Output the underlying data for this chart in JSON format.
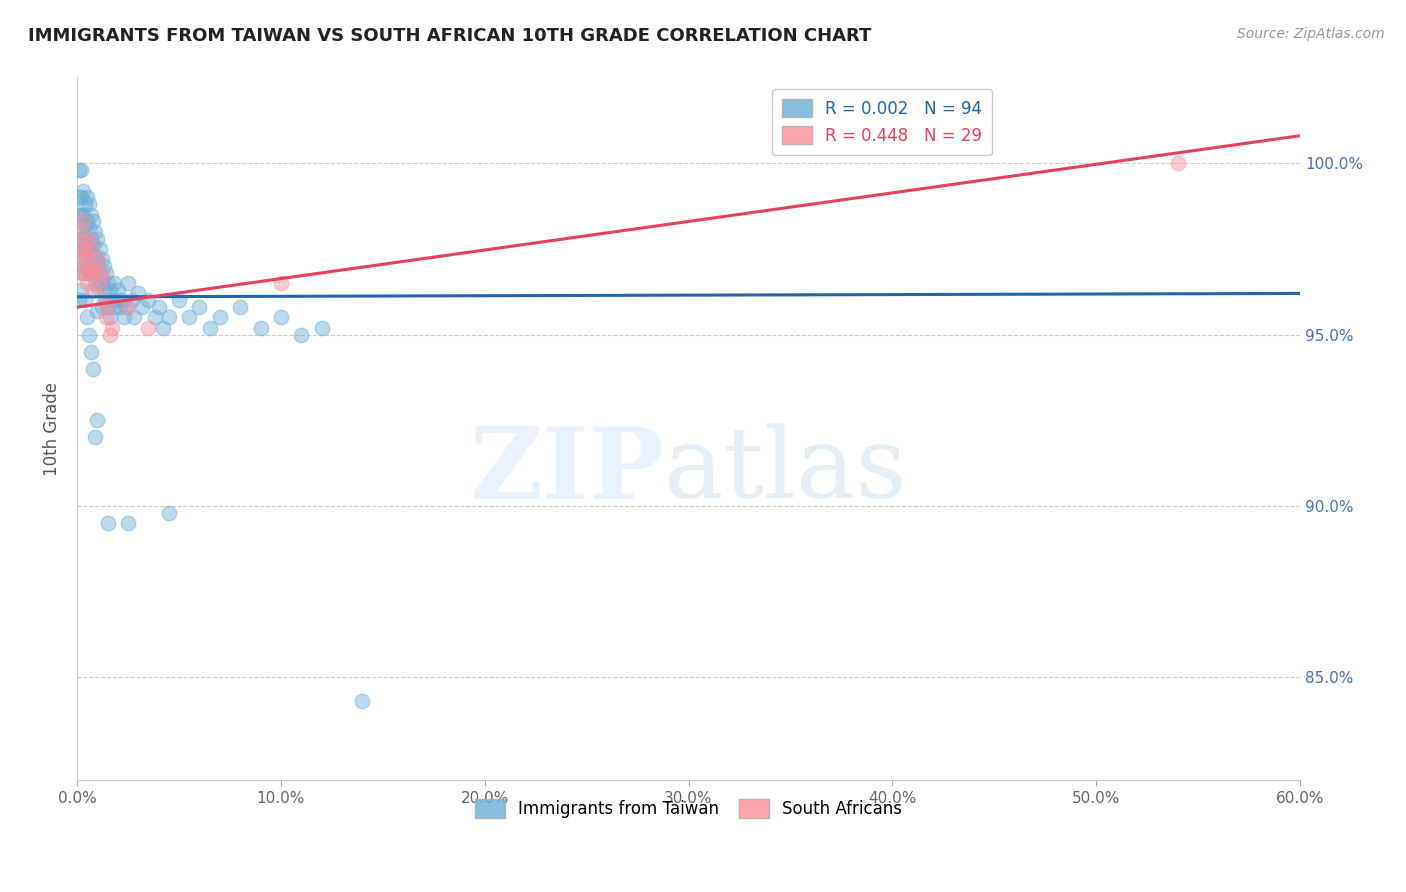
{
  "title": "IMMIGRANTS FROM TAIWAN VS SOUTH AFRICAN 10TH GRADE CORRELATION CHART",
  "source": "Source: ZipAtlas.com",
  "ylabel": "10th Grade",
  "ytick_labels": [
    "85.0%",
    "90.0%",
    "95.0%",
    "100.0%"
  ],
  "ytick_values": [
    0.85,
    0.9,
    0.95,
    1.0
  ],
  "legend_entry1": "R = 0.002   N = 94",
  "legend_entry2": "R = 0.448   N = 29",
  "legend_color1": "#6baed6",
  "legend_color2": "#fc8d9a",
  "trendline1_color": "#2166ac",
  "trendline2_color": "#e8405a",
  "background_color": "#ffffff",
  "taiwan_dot_color": "#6baed6",
  "sa_dot_color": "#fc8d9a",
  "xlim": [
    0.0,
    0.6
  ],
  "ylim": [
    0.82,
    1.025
  ],
  "dot_size": 110,
  "dot_alpha": 0.45,
  "taiwan_trendline_x": [
    0.0,
    0.6
  ],
  "taiwan_trendline_y": [
    0.961,
    0.962
  ],
  "sa_trendline_x": [
    0.0,
    0.6
  ],
  "sa_trendline_y": [
    0.958,
    1.008
  ],
  "taiwan_x": [
    0.001,
    0.001,
    0.001,
    0.001,
    0.001,
    0.002,
    0.002,
    0.002,
    0.002,
    0.002,
    0.003,
    0.003,
    0.003,
    0.003,
    0.004,
    0.004,
    0.004,
    0.005,
    0.005,
    0.005,
    0.005,
    0.006,
    0.006,
    0.006,
    0.006,
    0.007,
    0.007,
    0.007,
    0.008,
    0.008,
    0.008,
    0.009,
    0.009,
    0.009,
    0.01,
    0.01,
    0.01,
    0.01,
    0.011,
    0.011,
    0.012,
    0.012,
    0.012,
    0.013,
    0.013,
    0.014,
    0.014,
    0.015,
    0.015,
    0.016,
    0.016,
    0.017,
    0.018,
    0.018,
    0.019,
    0.02,
    0.021,
    0.022,
    0.023,
    0.024,
    0.025,
    0.027,
    0.028,
    0.03,
    0.032,
    0.035,
    0.038,
    0.04,
    0.042,
    0.045,
    0.05,
    0.055,
    0.06,
    0.065,
    0.07,
    0.08,
    0.09,
    0.1,
    0.11,
    0.12,
    0.001,
    0.002,
    0.003,
    0.004,
    0.005,
    0.006,
    0.007,
    0.008,
    0.009,
    0.01,
    0.015,
    0.025,
    0.045,
    0.14
  ],
  "taiwan_y": [
    0.998,
    0.99,
    0.985,
    0.978,
    0.972,
    0.998,
    0.99,
    0.985,
    0.98,
    0.975,
    0.992,
    0.985,
    0.978,
    0.97,
    0.988,
    0.982,
    0.975,
    0.99,
    0.983,
    0.976,
    0.969,
    0.988,
    0.981,
    0.975,
    0.968,
    0.985,
    0.978,
    0.971,
    0.983,
    0.976,
    0.968,
    0.98,
    0.973,
    0.965,
    0.978,
    0.971,
    0.964,
    0.957,
    0.975,
    0.968,
    0.972,
    0.965,
    0.958,
    0.97,
    0.963,
    0.968,
    0.96,
    0.965,
    0.958,
    0.963,
    0.955,
    0.96,
    0.965,
    0.958,
    0.96,
    0.963,
    0.958,
    0.96,
    0.955,
    0.958,
    0.965,
    0.96,
    0.955,
    0.962,
    0.958,
    0.96,
    0.955,
    0.958,
    0.952,
    0.955,
    0.96,
    0.955,
    0.958,
    0.952,
    0.955,
    0.958,
    0.952,
    0.955,
    0.95,
    0.952,
    0.96,
    0.963,
    0.968,
    0.96,
    0.955,
    0.95,
    0.945,
    0.94,
    0.92,
    0.925,
    0.895,
    0.895,
    0.898,
    0.843
  ],
  "sa_x": [
    0.001,
    0.001,
    0.002,
    0.002,
    0.003,
    0.003,
    0.004,
    0.004,
    0.005,
    0.005,
    0.006,
    0.006,
    0.007,
    0.007,
    0.008,
    0.008,
    0.009,
    0.01,
    0.011,
    0.012,
    0.013,
    0.014,
    0.015,
    0.016,
    0.017,
    0.025,
    0.035,
    0.1,
    0.54
  ],
  "sa_y": [
    0.98,
    0.972,
    0.975,
    0.968,
    0.983,
    0.974,
    0.977,
    0.968,
    0.973,
    0.965,
    0.978,
    0.97,
    0.975,
    0.968,
    0.97,
    0.963,
    0.968,
    0.972,
    0.965,
    0.968,
    0.96,
    0.955,
    0.958,
    0.95,
    0.952,
    0.958,
    0.952,
    0.965,
    1.0
  ]
}
